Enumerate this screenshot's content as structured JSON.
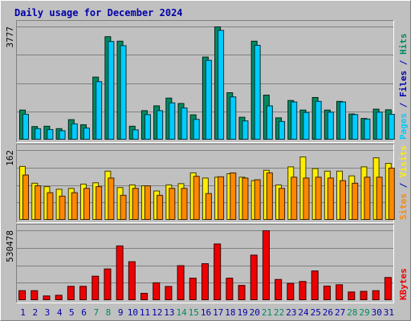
{
  "chart_data": {
    "type": "bar",
    "title": "Daily usage for December 2024",
    "categories": [
      "1",
      "2",
      "3",
      "4",
      "5",
      "6",
      "7",
      "8",
      "9",
      "10",
      "11",
      "12",
      "13",
      "14",
      "15",
      "16",
      "17",
      "18",
      "19",
      "20",
      "21",
      "22",
      "23",
      "24",
      "25",
      "26",
      "27",
      "28",
      "29",
      "30",
      "31"
    ],
    "weekend_days": [
      "7",
      "8",
      "14",
      "15",
      "21",
      "22",
      "28",
      "29"
    ],
    "colors": {
      "title": "#0000aa",
      "hits": "#008a62",
      "files": "#00ccff",
      "pages": "#00ccff",
      "sites": "#ff8800",
      "visits": "#ffee00",
      "kbytes": "#ee0000",
      "weekday_label": "#0000aa",
      "weekend_label": "#008a62",
      "background": "#c0c0c0"
    },
    "panels": [
      {
        "id": "usage",
        "ymax_label": "3777",
        "ymax": 3777,
        "labels": [
          {
            "text": "Pages",
            "color": "#00ccff"
          },
          {
            "text": " / ",
            "color": "#0000aa"
          },
          {
            "text": "Files",
            "color": "#0000aa"
          },
          {
            "text": " / ",
            "color": "#0000aa"
          },
          {
            "text": "Hits",
            "color": "#008a62"
          }
        ],
        "series": [
          {
            "name": "Hits",
            "color": "#008a62",
            "values": [
              1000,
              450,
              460,
              380,
              680,
              510,
              2100,
              3450,
              3300,
              460,
              980,
              1140,
              1400,
              1220,
              840,
              2770,
              3777,
              1580,
              760,
              3300,
              1500,
              740,
              1320,
              1000,
              1420,
              1000,
              1290,
              870,
              720,
              1030,
              1010
            ]
          },
          {
            "name": "Files",
            "color": "#00ccff",
            "values": [
              860,
              380,
              350,
              310,
              540,
              400,
              1950,
              3290,
              3150,
              340,
              850,
              980,
              1240,
              1070,
              690,
              2660,
              3660,
              1440,
              640,
              3160,
              1140,
              620,
              1270,
              920,
              1290,
              930,
              1270,
              850,
              700,
              930,
              860
            ]
          }
        ]
      },
      {
        "id": "sites",
        "ymax_label": "162",
        "ymax": 162,
        "labels": [
          {
            "text": "Sites",
            "color": "#ff8800"
          },
          {
            "text": " / ",
            "color": "#0000aa"
          },
          {
            "text": "Visits",
            "color": "#ffee00"
          }
        ],
        "series": [
          {
            "name": "Visits",
            "color": "#ffee00",
            "values": [
              125,
              86,
              78,
              72,
              74,
              84,
              87,
              114,
              76,
              82,
              80,
              68,
              82,
              85,
              110,
              98,
              100,
              108,
              100,
              92,
              116,
              82,
              124,
              147,
              120,
              114,
              114,
              103,
              124,
              145,
              132
            ]
          },
          {
            "name": "Sites",
            "color": "#ff8800",
            "values": [
              105,
              80,
              64,
              56,
              64,
              74,
              78,
              98,
              58,
              74,
              80,
              58,
              74,
              74,
              102,
              62,
              101,
              110,
              98,
              94,
              110,
              74,
              100,
              98,
              100,
              98,
              92,
              86,
              100,
              100,
              121
            ]
          }
        ]
      },
      {
        "id": "kbytes",
        "ymax_label": "530478",
        "ymax": 530478,
        "labels": [
          {
            "text": "KBytes",
            "color": "#ee0000"
          }
        ],
        "series": [
          {
            "name": "KBytes",
            "color": "#ee0000",
            "values": [
              75000,
              75000,
              35000,
              40000,
              108000,
              108000,
              185000,
              240000,
              415000,
              295000,
              55000,
              135000,
              107000,
              265000,
              170000,
              280000,
              430000,
              170000,
              115000,
              345000,
              530478,
              160000,
              130000,
              145000,
              225000,
              110000,
              120000,
              65000,
              70000,
              75000,
              175000
            ]
          }
        ]
      }
    ]
  }
}
